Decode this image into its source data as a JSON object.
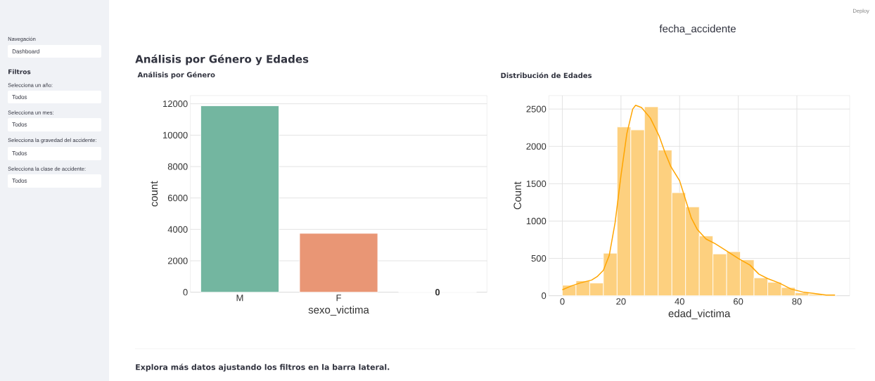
{
  "chart_data": [
    {
      "type": "other",
      "annotations": [
        "Navegación",
        "Dashboard",
        "Filtros",
        "Selecciona un año:",
        "Todos",
        "Selecciona un mes:",
        "Todos",
        "Selecciona la gravedad del accidente:",
        "Todos",
        "Selecciona la clase de accidente:",
        "Todos",
        "Deploy",
        "fecha_accidente",
        "Análisis por Género y Edades",
        "Explora más datos ajustando los filtros en la barra lateral."
      ]
    },
    {
      "type": "bar",
      "title": "Análisis por Género",
      "xlabel": "sexo_victima",
      "ylabel": "count",
      "categories": [
        "M",
        "F",
        null
      ],
      "values": [
        11870,
        3750,
        0
      ],
      "colors": [
        "#73b6a0",
        "#e99675",
        "#e99675"
      ],
      "value_labels": [
        null,
        null,
        "0"
      ],
      "ylim": [
        0,
        12520
      ],
      "yticks": [
        0,
        2000,
        4000,
        6000,
        8000,
        10000,
        12000
      ],
      "grid": "y"
    },
    {
      "type": "histogram",
      "title": "Distribución de Edades",
      "xlabel": "edad_victima",
      "ylabel": "Count",
      "color": "#fdd07f",
      "bins": [
        0,
        4.67,
        9.34,
        14.01,
        18.68,
        23.35,
        28.02,
        32.69,
        37.36,
        42.03,
        46.7,
        51.37,
        56.04,
        60.71,
        65.38,
        70.05,
        74.72,
        79.39,
        84.06,
        88.73,
        93.4
      ],
      "values": [
        140,
        200,
        170,
        570,
        2260,
        2220,
        2530,
        1950,
        1380,
        1190,
        800,
        560,
        590,
        480,
        240,
        180,
        110,
        40,
        20,
        10
      ],
      "series": [
        {
          "type": "line",
          "color": "#ffa500",
          "x": [
            0,
            3,
            6,
            10,
            12,
            14,
            16,
            18,
            20,
            22,
            24,
            25,
            27,
            30,
            33,
            35,
            37,
            40,
            42,
            44,
            46,
            49,
            52,
            56,
            60,
            64,
            67,
            70,
            74,
            78,
            82,
            86,
            90,
            93
          ],
          "values": [
            80,
            130,
            170,
            210,
            260,
            340,
            540,
            980,
            1610,
            2170,
            2500,
            2550,
            2520,
            2380,
            2140,
            1920,
            1730,
            1540,
            1290,
            1040,
            890,
            760,
            700,
            600,
            500,
            410,
            290,
            230,
            170,
            90,
            50,
            30,
            10,
            10
          ]
        }
      ],
      "xlim": [
        -4.6,
        98
      ],
      "ylim": [
        0,
        2680
      ],
      "xticks": [
        0,
        20,
        40,
        60,
        80
      ],
      "yticks": [
        0,
        500,
        1000,
        1500,
        2000,
        2500
      ],
      "grid": true
    }
  ]
}
